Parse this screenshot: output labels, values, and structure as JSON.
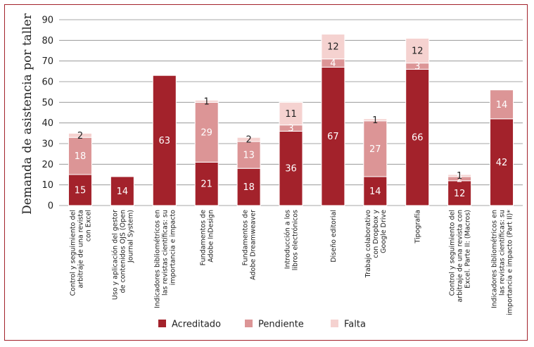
{
  "chart_data": {
    "type": "bar",
    "stacked": true,
    "ylabel": "Demanda de asistencia por taller",
    "ylim": [
      0,
      90
    ],
    "yticks": [
      0,
      10,
      20,
      30,
      40,
      50,
      60,
      70,
      80,
      90
    ],
    "grid": true,
    "legend_position": "bottom",
    "categories": [
      [
        "Control y seguimiento del",
        "arbitraje de una revista",
        "con Excel"
      ],
      [
        "Uso y aplicación del gestor",
        "de contenidos OJS (Open",
        "Journal System)"
      ],
      [
        "Indicadores bibliométricos en",
        "las revistas científicas: su",
        "importancia e impacto"
      ],
      [
        "Fundamentos de",
        "Adobe InDesign"
      ],
      [
        "Fundamentos de",
        "Adobe Dreamweaver"
      ],
      [
        "Introducción a los",
        "libros electrónicos"
      ],
      [
        "Diseño editorial"
      ],
      [
        "Trabajo colaborativo",
        "con Dropbox y",
        "Google Drive"
      ],
      [
        "Tipografía"
      ],
      [
        "Control y seguimiento del",
        "arbitraje de una revista con",
        "Excel. Parte II: (Macros)"
      ],
      [
        "Indicadores bibliométricos en",
        "las revistas científicas: su",
        "importancia e impacto (Part II)*"
      ]
    ],
    "series": [
      {
        "name": "Acreditado",
        "color": "#a3222b",
        "values": [
          15,
          14,
          63,
          21,
          18,
          36,
          67,
          14,
          66,
          12,
          42
        ]
      },
      {
        "name": "Pendiente",
        "color": "#dc9596",
        "values": [
          18,
          0,
          0,
          29,
          13,
          3,
          4,
          27,
          3,
          2,
          14
        ]
      },
      {
        "name": "Falta",
        "color": "#f5d2d0",
        "values": [
          2,
          0,
          0,
          1,
          2,
          11,
          12,
          1,
          12,
          1,
          0
        ]
      }
    ]
  }
}
